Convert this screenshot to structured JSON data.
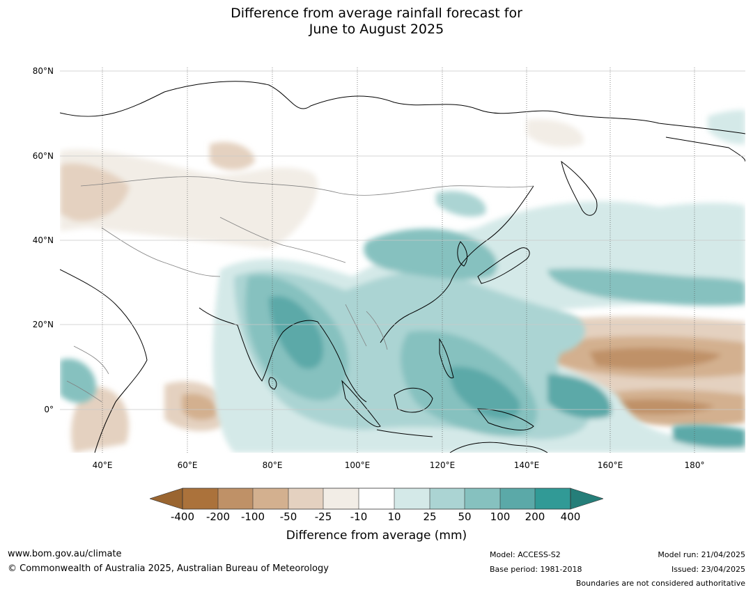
{
  "title": {
    "line1": "Difference from average rainfall forecast for",
    "line2": "June to August 2025"
  },
  "map": {
    "lat_labels": [
      "80°N",
      "60°N",
      "40°N",
      "20°N",
      "0°"
    ],
    "lon_labels": [
      "40°E",
      "60°E",
      "80°E",
      "100°E",
      "120°E",
      "140°E",
      "160°E",
      "180°"
    ],
    "extent": {
      "lon_min": 30,
      "lon_max": 191,
      "lat_min": -10,
      "lat_max": 80
    }
  },
  "colorbar": {
    "tick_labels": [
      "-400",
      "-200",
      "-100",
      "-50",
      "-25",
      "-10",
      "10",
      "25",
      "50",
      "100",
      "200",
      "400"
    ],
    "label": "Difference from average (mm)",
    "colors": {
      "below_min": "#9a6530",
      "b200_400": "#ab723b",
      "b100_200": "#bf9167",
      "b50_100": "#d3b08f",
      "b25_50": "#e4d1c0",
      "b10_25": "#f2ede6",
      "neutral": "#ffffff",
      "w10_25": "#d4e9e8",
      "w25_50": "#abd4d3",
      "w50_100": "#86c1bf",
      "w100_200": "#5ba9a8",
      "w200_400": "#319a96",
      "above_max": "#257e79"
    }
  },
  "footer": {
    "website": "www.bom.gov.au/climate",
    "copyright": "© Commonwealth of Australia 2025, Australian Bureau of Meteorology",
    "model": "Model: ACCESS-S2",
    "base_period": "Base period: 1981-2018",
    "model_run": "Model run: 21/04/2025",
    "issued": "Issued: 23/04/2025",
    "disclaimer": "Boundaries are not considered authoritative"
  }
}
